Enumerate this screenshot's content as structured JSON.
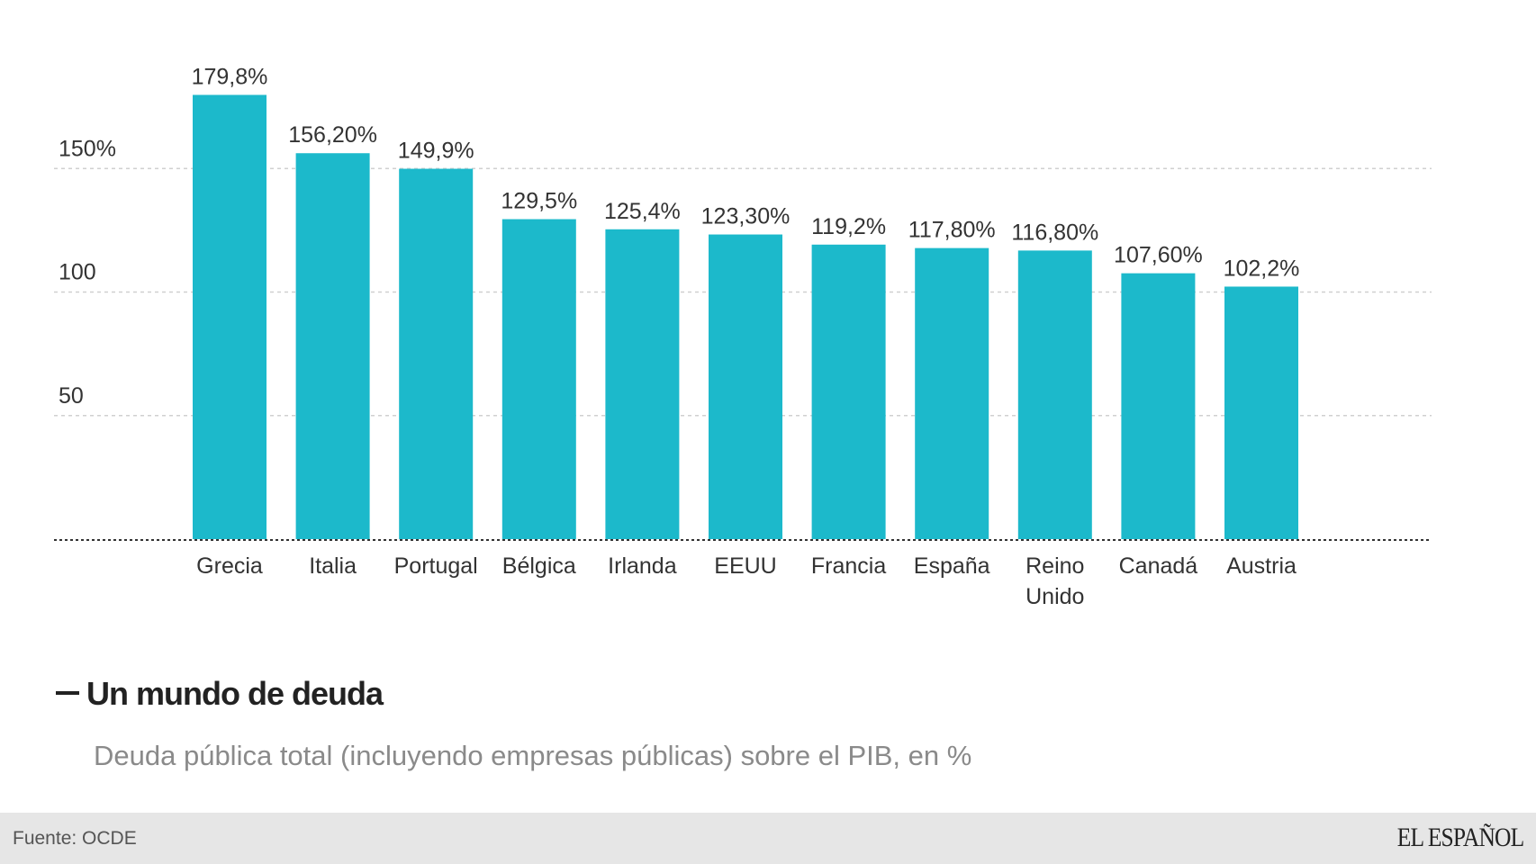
{
  "chart_data": {
    "type": "bar",
    "title": "Un mundo de deuda",
    "subtitle": "Deuda pública total (incluyendo empresas públicas) sobre el PIB, en %",
    "categories": [
      "Grecia",
      "Italia",
      "Portugal",
      "Bélgica",
      "Irlanda",
      "EEUU",
      "Francia",
      "España",
      "Reino Unido",
      "Canadá",
      "Austria"
    ],
    "category_lines": [
      [
        "Grecia"
      ],
      [
        "Italia"
      ],
      [
        "Portugal"
      ],
      [
        "Bélgica"
      ],
      [
        "Irlanda"
      ],
      [
        "EEUU"
      ],
      [
        "Francia"
      ],
      [
        "España"
      ],
      [
        "Reino",
        "Unido"
      ],
      [
        "Canadá"
      ],
      [
        "Austria"
      ]
    ],
    "values": [
      179.8,
      156.2,
      149.9,
      129.5,
      125.4,
      123.3,
      119.2,
      117.8,
      116.8,
      107.6,
      102.2
    ],
    "value_labels": [
      "179,8%",
      "156,20%",
      "149,9%",
      "129,5%",
      "125,4%",
      "123,30%",
      "119,2%",
      "117,80%",
      "116,80%",
      "107,60%",
      "102,2%"
    ],
    "yticks": [
      50,
      100,
      150
    ],
    "ytick_labels": [
      "50",
      "100",
      "150%"
    ],
    "ylim": [
      0,
      180
    ],
    "xlabel": "",
    "ylabel": "",
    "grid": true,
    "bar_color": "#1cb9cb"
  },
  "footer": {
    "source": "Fuente: OCDE",
    "logo": "EL ESPAÑOL"
  }
}
